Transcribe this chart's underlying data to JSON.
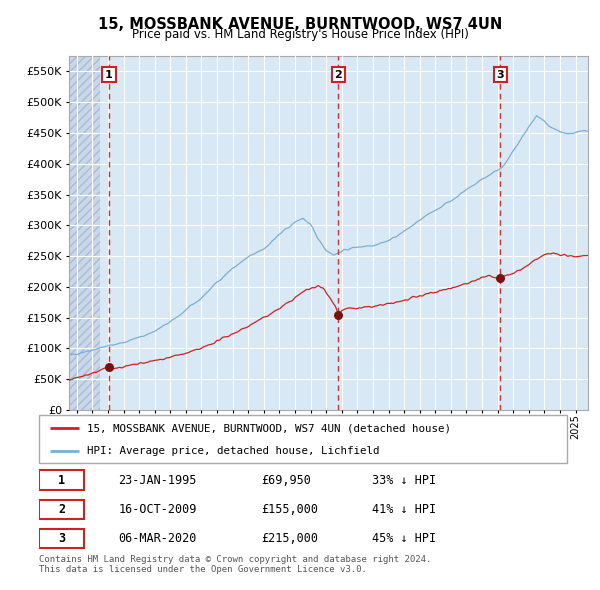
{
  "title": "15, MOSSBANK AVENUE, BURNTWOOD, WS7 4UN",
  "subtitle": "Price paid vs. HM Land Registry's House Price Index (HPI)",
  "bg_color": "#d8e8f4",
  "grid_color": "#ffffff",
  "hatch_color": "#c8d8ea",
  "ylim": [
    0,
    575000
  ],
  "yticks": [
    0,
    50000,
    100000,
    150000,
    200000,
    250000,
    300000,
    350000,
    400000,
    450000,
    500000,
    550000
  ],
  "xlim_start": 1992.5,
  "xlim_end": 2025.8,
  "sale_dates": [
    1995.06,
    2009.79,
    2020.17
  ],
  "sale_prices": [
    69950,
    155000,
    215000
  ],
  "sale_labels": [
    "1",
    "2",
    "3"
  ],
  "legend_red_label": "15, MOSSBANK AVENUE, BURNTWOOD, WS7 4UN (detached house)",
  "legend_blue_label": "HPI: Average price, detached house, Lichfield",
  "table_rows": [
    {
      "num": "1",
      "date": "23-JAN-1995",
      "price": "£69,950",
      "pct": "33% ↓ HPI"
    },
    {
      "num": "2",
      "date": "16-OCT-2009",
      "price": "£155,000",
      "pct": "41% ↓ HPI"
    },
    {
      "num": "3",
      "date": "06-MAR-2020",
      "price": "£215,000",
      "pct": "45% ↓ HPI"
    }
  ],
  "footer": "Contains HM Land Registry data © Crown copyright and database right 2024.\nThis data is licensed under the Open Government Licence v3.0.",
  "red_line_color": "#cc2222",
  "blue_line_color": "#7ab0d4",
  "dashed_line_color": "#cc3333",
  "marker_color": "#7a1111"
}
